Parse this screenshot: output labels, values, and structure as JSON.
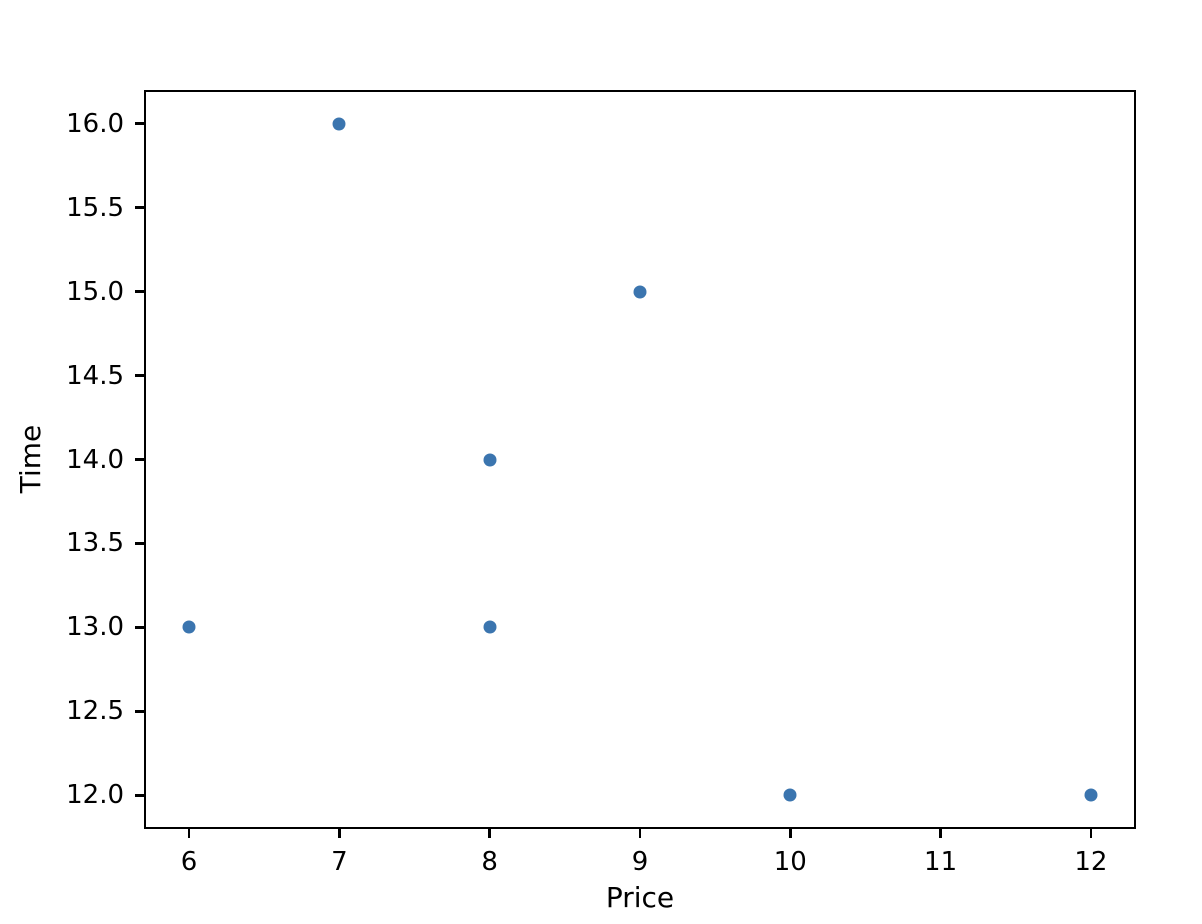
{
  "chart_data": {
    "type": "scatter",
    "title": "",
    "xlabel": "Price",
    "ylabel": "Time",
    "points": [
      {
        "x": 7,
        "y": 16.0
      },
      {
        "x": 9,
        "y": 15.0
      },
      {
        "x": 8,
        "y": 14.0
      },
      {
        "x": 6,
        "y": 13.0
      },
      {
        "x": 8,
        "y": 13.0
      },
      {
        "x": 10,
        "y": 12.0
      },
      {
        "x": 12,
        "y": 12.0
      }
    ],
    "xlim": [
      5.7,
      12.3
    ],
    "ylim": [
      11.8,
      16.2
    ],
    "x_ticks": [
      6,
      7,
      8,
      9,
      10,
      11,
      12
    ],
    "x_tick_labels": [
      "6",
      "7",
      "8",
      "9",
      "10",
      "11",
      "12"
    ],
    "y_ticks": [
      12.0,
      12.5,
      13.0,
      13.5,
      14.0,
      14.5,
      15.0,
      15.5,
      16.0
    ],
    "y_tick_labels": [
      "12.0",
      "12.5",
      "13.0",
      "13.5",
      "14.0",
      "14.5",
      "15.0",
      "15.5",
      "16.0"
    ],
    "marker_color": "#3b75af",
    "marker_diameter_px": 13,
    "axis_color": "#000000",
    "background_color": "#ffffff",
    "grid": false,
    "legend": null
  }
}
